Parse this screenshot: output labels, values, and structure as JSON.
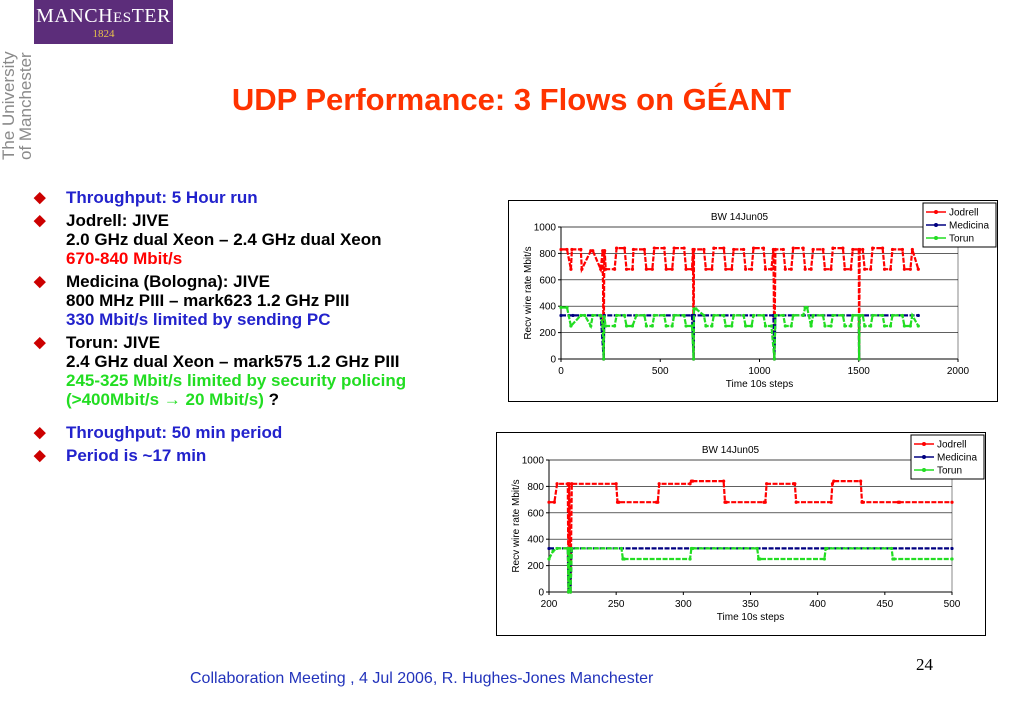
{
  "logo": {
    "name_parts": [
      "MANCH",
      "ES",
      "TER"
    ],
    "year": "1824"
  },
  "side_text": {
    "line1": "The University",
    "line2": "of Manchester"
  },
  "title": "UDP Performance: 3 Flows on GÉANT",
  "bullets": [
    {
      "lines": [
        {
          "text": "Throughput: 5 Hour run",
          "color": "#2222cc"
        }
      ]
    },
    {
      "lines": [
        {
          "text": "Jodrell: JIVE",
          "color": "#000000"
        },
        {
          "text": "2.0 GHz  dual Xeon – 2.4 GHz dual Xeon",
          "color": "#000000"
        },
        {
          "text": "670-840 Mbit/s",
          "color": "#ff0000"
        }
      ]
    },
    {
      "lines": [
        {
          "text": "Medicina (Bologna): JIVE",
          "color": "#000000"
        },
        {
          "text": "800 MHz PIII – mark623 1.2 GHz PIII",
          "color": "#000000"
        },
        {
          "text": "330 Mbit/s limited by sending PC",
          "color": "#2222cc"
        }
      ]
    },
    {
      "lines": [
        {
          "text": "Torun: JIVE",
          "color": "#000000"
        },
        {
          "text": "2.4 GHz dual Xeon – mark575 1.2 GHz PIII",
          "color": "#000000"
        },
        {
          "text": "245-325 Mbit/s limited by security policing",
          "color": "#22dd22"
        }
      ],
      "last": {
        "text": "(>400Mbit/s ",
        "arrow": "→",
        "text2": " 20 Mbit/s)",
        "tail": " ?"
      }
    },
    {
      "gap": true,
      "lines": [
        {
          "text": "Throughput: 50 min period",
          "color": "#2222cc"
        }
      ]
    },
    {
      "lines": [
        {
          "text": "Period is ~17 min",
          "color": "#2222cc"
        }
      ]
    }
  ],
  "chart_data": [
    {
      "type": "line",
      "title": "BW 14Jun05",
      "xlabel": "Time 10s steps",
      "ylabel": "Recv wire rate Mbit/s",
      "xlim": [
        0,
        2000
      ],
      "ylim": [
        0,
        1000
      ],
      "xticks": [
        0,
        500,
        1000,
        1500,
        2000
      ],
      "yticks": [
        0,
        200,
        400,
        600,
        800,
        1000
      ],
      "grid": true,
      "legend": "top-right",
      "series": [
        {
          "name": "Jodrell",
          "color": "#ff0000",
          "x": [
            0,
            30,
            50,
            55,
            100,
            105,
            150,
            160,
            200,
            210,
            215,
            218,
            220,
            225,
            270,
            280,
            320,
            330,
            360,
            365,
            420,
            430,
            460,
            470,
            520,
            530,
            560,
            570,
            620,
            630,
            660,
            665,
            668,
            670,
            720,
            730,
            760,
            770,
            820,
            830,
            860,
            870,
            920,
            930,
            960,
            970,
            1020,
            1030,
            1060,
            1070,
            1075,
            1080,
            1120,
            1130,
            1160,
            1170,
            1220,
            1230,
            1260,
            1270,
            1320,
            1330,
            1360,
            1370,
            1420,
            1430,
            1460,
            1470,
            1500,
            1502,
            1505,
            1520,
            1530,
            1560,
            1570,
            1620,
            1630,
            1660,
            1670,
            1720,
            1730,
            1760,
            1770,
            1800
          ],
          "values": [
            830,
            830,
            680,
            830,
            830,
            680,
            820,
            820,
            680,
            820,
            0,
            820,
            820,
            680,
            680,
            840,
            840,
            680,
            680,
            830,
            830,
            680,
            680,
            840,
            840,
            680,
            680,
            840,
            840,
            680,
            680,
            830,
            0,
            830,
            830,
            680,
            680,
            840,
            840,
            680,
            680,
            830,
            830,
            680,
            680,
            840,
            840,
            680,
            680,
            830,
            0,
            830,
            830,
            680,
            680,
            840,
            840,
            680,
            680,
            830,
            830,
            680,
            680,
            840,
            840,
            680,
            680,
            830,
            830,
            0,
            830,
            830,
            680,
            680,
            840,
            840,
            680,
            680,
            830,
            830,
            680,
            680,
            830,
            680
          ]
        },
        {
          "name": "Medicina",
          "color": "#000080",
          "x": [
            0,
            40,
            60,
            200,
            215,
            218,
            660,
            668,
            670,
            1070,
            1075,
            1080,
            1500,
            1502,
            1505,
            1800
          ],
          "values": [
            330,
            330,
            330,
            330,
            0,
            330,
            330,
            0,
            330,
            330,
            0,
            330,
            330,
            0,
            330,
            330
          ]
        },
        {
          "name": "Torun",
          "color": "#22dd22",
          "x": [
            0,
            30,
            50,
            100,
            120,
            150,
            160,
            200,
            210,
            215,
            218,
            225,
            270,
            280,
            320,
            330,
            360,
            380,
            420,
            430,
            460,
            470,
            520,
            530,
            560,
            570,
            620,
            630,
            660,
            668,
            670,
            680,
            720,
            730,
            760,
            770,
            820,
            830,
            860,
            870,
            920,
            930,
            960,
            970,
            1020,
            1030,
            1060,
            1075,
            1080,
            1120,
            1130,
            1160,
            1170,
            1220,
            1230,
            1240,
            1260,
            1270,
            1320,
            1330,
            1360,
            1370,
            1420,
            1430,
            1460,
            1470,
            1500,
            1502,
            1505,
            1520,
            1530,
            1560,
            1570,
            1620,
            1630,
            1660,
            1670,
            1720,
            1730,
            1760,
            1770,
            1800
          ],
          "values": [
            390,
            390,
            250,
            330,
            330,
            250,
            330,
            330,
            250,
            0,
            320,
            250,
            250,
            330,
            330,
            250,
            250,
            330,
            330,
            250,
            250,
            330,
            330,
            250,
            250,
            330,
            330,
            250,
            250,
            0,
            380,
            380,
            330,
            250,
            250,
            330,
            330,
            250,
            250,
            330,
            330,
            250,
            250,
            330,
            330,
            250,
            250,
            0,
            330,
            330,
            250,
            250,
            330,
            330,
            390,
            390,
            250,
            330,
            330,
            250,
            250,
            330,
            330,
            250,
            250,
            330,
            330,
            0,
            330,
            330,
            250,
            250,
            330,
            330,
            250,
            250,
            330,
            330,
            250,
            250,
            330,
            250
          ]
        }
      ]
    },
    {
      "type": "line",
      "title": "BW 14Jun05",
      "xlabel": "Time 10s steps",
      "ylabel": "Recv wire rate Mbit/s",
      "xlim": [
        200,
        500
      ],
      "ylim": [
        0,
        1000
      ],
      "xticks": [
        200,
        250,
        300,
        350,
        400,
        450,
        500
      ],
      "yticks": [
        0,
        200,
        400,
        600,
        800,
        1000
      ],
      "grid": true,
      "legend": "top-right",
      "series": [
        {
          "name": "Jodrell",
          "color": "#ff0000",
          "x": [
            200,
            204,
            206,
            214,
            214.5,
            215,
            216,
            217,
            250,
            251,
            252,
            280,
            281,
            282,
            305,
            306,
            307,
            330,
            331,
            332,
            360,
            361,
            362,
            382,
            383,
            384,
            410,
            411,
            412,
            432,
            433,
            434,
            460,
            461,
            500
          ],
          "values": [
            680,
            680,
            820,
            820,
            0,
            820,
            0,
            820,
            820,
            680,
            680,
            680,
            680,
            820,
            820,
            840,
            840,
            840,
            680,
            680,
            680,
            680,
            820,
            820,
            820,
            680,
            680,
            820,
            840,
            840,
            680,
            680,
            680,
            680,
            680
          ]
        },
        {
          "name": "Medicina",
          "color": "#000080",
          "x": [
            200,
            214,
            214.5,
            215,
            216,
            217,
            500
          ],
          "values": [
            330,
            330,
            0,
            330,
            0,
            330,
            330
          ]
        },
        {
          "name": "Torun",
          "color": "#22dd22",
          "x": [
            200,
            203,
            206,
            214,
            214.5,
            215,
            216,
            217,
            254,
            255,
            256,
            305,
            306,
            307,
            355,
            356,
            357,
            405,
            406,
            407,
            455,
            456,
            457,
            500
          ],
          "values": [
            250,
            310,
            330,
            330,
            0,
            330,
            0,
            330,
            330,
            250,
            250,
            250,
            330,
            330,
            330,
            250,
            250,
            250,
            330,
            330,
            330,
            250,
            250,
            250
          ]
        }
      ]
    }
  ],
  "footer": "Collaboration Meeting , 4 Jul 2006,  R. Hughes-Jones  Manchester",
  "page_number": "24"
}
